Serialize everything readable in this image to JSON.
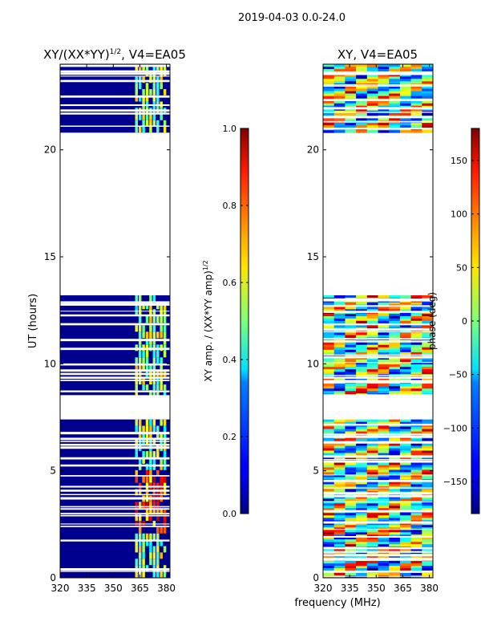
{
  "suptitle": "2019-04-03 0.0-24.0",
  "xlabel": "frequency (MHz)",
  "chart_data": [
    {
      "type": "heatmap",
      "title_main": "XY/(XX*YY)",
      "title_sup": "1/2",
      "title_tail": ", V4=EA05",
      "xlabel": "",
      "ylabel": "UT (hours)",
      "xlim": [
        320,
        382
      ],
      "ylim": [
        0,
        24
      ],
      "xticks": [
        320,
        335,
        350,
        365,
        380
      ],
      "yticks": [
        0,
        5,
        10,
        15,
        20
      ],
      "xtick_labels": [
        "320",
        "335",
        "350",
        "365",
        "380"
      ],
      "ytick_labels": [
        "0",
        "5",
        "10",
        "15",
        "20"
      ],
      "data_blocks_hours": [
        [
          0.0,
          7.4
        ],
        [
          8.5,
          9.3
        ],
        [
          9.4,
          11.8
        ],
        [
          11.9,
          13.2
        ],
        [
          20.8,
          24.0
        ]
      ],
      "colorbar": {
        "label_main": "XY amp. / (XX*YY amp)",
        "label_sup": "1/2",
        "range": [
          0.0,
          1.0
        ],
        "ticks": [
          0.0,
          0.2,
          0.4,
          0.6,
          0.8,
          1.0
        ],
        "tick_labels": [
          "0.0",
          "0.2",
          "0.4",
          "0.6",
          "0.8",
          "1.0"
        ],
        "colormap": "jet"
      }
    },
    {
      "type": "heatmap",
      "title": "XY, V4=EA05",
      "xlabel": "frequency (MHz)",
      "ylabel": "",
      "xlim": [
        320,
        382
      ],
      "ylim": [
        0,
        24
      ],
      "xticks": [
        320,
        335,
        350,
        365,
        380
      ],
      "yticks": [
        0,
        5,
        10,
        15,
        20
      ],
      "xtick_labels": [
        "320",
        "335",
        "350",
        "365",
        "380"
      ],
      "ytick_labels": [
        "0",
        "5",
        "10",
        "15",
        "20"
      ],
      "data_blocks_hours": [
        [
          0.0,
          7.4
        ],
        [
          8.5,
          9.3
        ],
        [
          9.4,
          11.8
        ],
        [
          11.9,
          13.2
        ],
        [
          20.8,
          24.0
        ]
      ],
      "colorbar": {
        "label": "phase (deg)",
        "range": [
          -180,
          180
        ],
        "ticks": [
          -150,
          -100,
          -50,
          0,
          50,
          100,
          150
        ],
        "tick_labels": [
          "−150",
          "−100",
          "−50",
          "0",
          "50",
          "100",
          "150"
        ],
        "colormap": "jet"
      }
    }
  ]
}
